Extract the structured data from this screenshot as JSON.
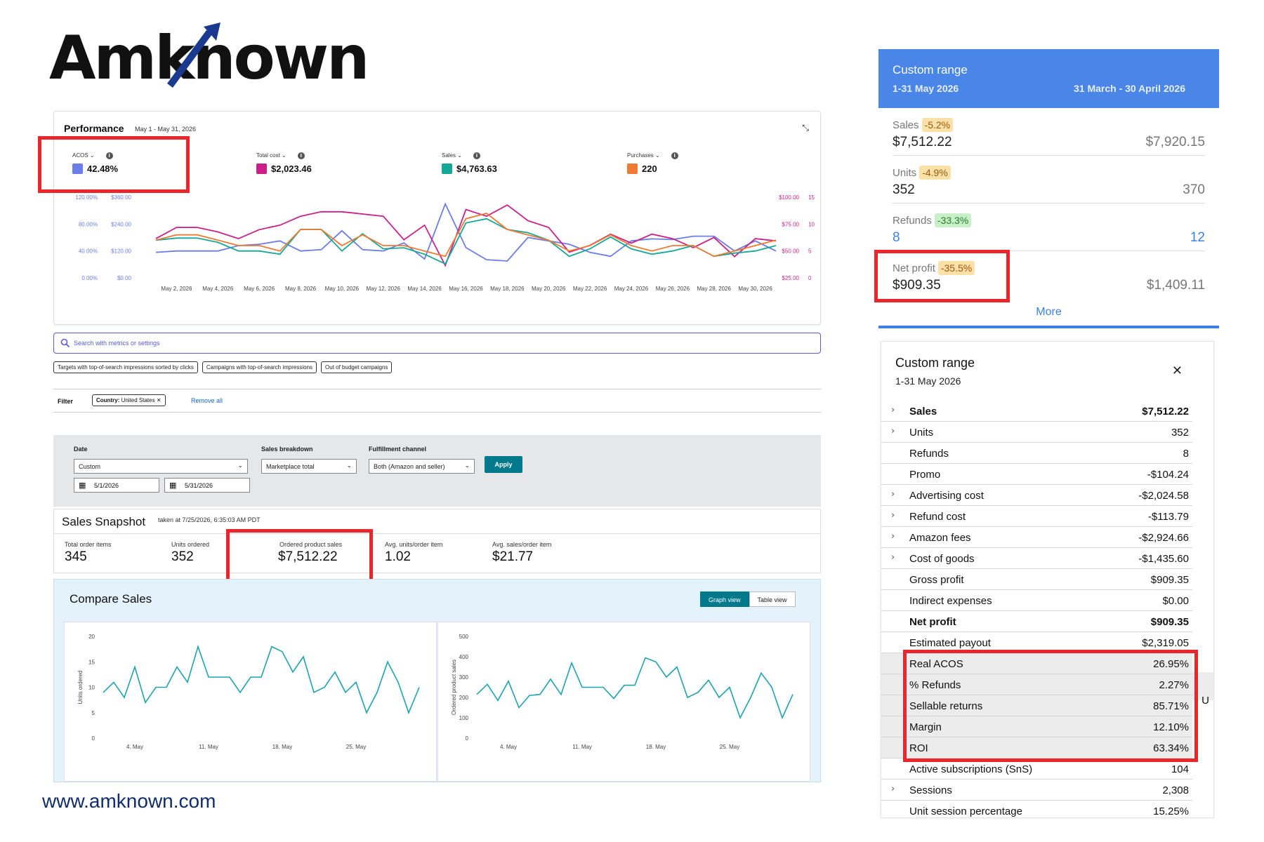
{
  "brand": {
    "logo": "Amknown",
    "website": "www.amknown.com"
  },
  "performance": {
    "title": "Performance",
    "range": "May 1 - May 31, 2026",
    "metrics": [
      {
        "label": "ACOS",
        "value": "42.48%",
        "color": "#6b7de8"
      },
      {
        "label": "Total cost",
        "value": "$2,023.46",
        "color": "#cc1f8a"
      },
      {
        "label": "Sales",
        "value": "$4,763.63",
        "color": "#14a896"
      },
      {
        "label": "Purchases",
        "value": "220",
        "color": "#f07a32"
      }
    ]
  },
  "chart_data": [
    {
      "type": "line",
      "title": "",
      "x": [
        "May 1",
        "May 2",
        "May 3",
        "May 4",
        "May 5",
        "May 6",
        "May 7",
        "May 8",
        "May 9",
        "May 10",
        "May 11",
        "May 12",
        "May 13",
        "May 14",
        "May 15",
        "May 16",
        "May 17",
        "May 18",
        "May 19",
        "May 20",
        "May 21",
        "May 22",
        "May 23",
        "May 24",
        "May 25",
        "May 26",
        "May 27",
        "May 28",
        "May 29",
        "May 30",
        "May 31"
      ],
      "x_tick_labels": [
        "May 2, 2026",
        "May 4, 2026",
        "May 6, 2026",
        "May 8, 2026",
        "May 10, 2026",
        "May 12, 2026",
        "May 14, 2026",
        "May 16, 2026",
        "May 18, 2026",
        "May 20, 2026",
        "May 22, 2026",
        "May 24, 2026",
        "May 26, 2026",
        "May 28, 2026",
        "May 30, 2026"
      ],
      "left_axis_pct_ticks": [
        "120.00%",
        "80.00%",
        "40.00%",
        "0.00%"
      ],
      "left_axis_usd_ticks": [
        "$360.00",
        "$240.00",
        "$120.00",
        "$0.00"
      ],
      "right_axis_usd_ticks": [
        "$100.00",
        "$75.00",
        "$50.00",
        "$25.00"
      ],
      "right_axis_count_ticks": [
        "15",
        "10",
        "5",
        "0"
      ],
      "grid": false,
      "series": [
        {
          "name": "ACOS",
          "axis": "pct",
          "ylim": [
            0,
            120
          ],
          "values": [
            38,
            40,
            40,
            40,
            48,
            50,
            55,
            40,
            42,
            70,
            42,
            40,
            52,
            28,
            110,
            45,
            27,
            25,
            60,
            55,
            50,
            38,
            32,
            55,
            58,
            57,
            62,
            62,
            40,
            55,
            40
          ]
        },
        {
          "name": "Total cost",
          "axis": "usd_left",
          "ylim": [
            0,
            360
          ],
          "values": [
            175,
            225,
            225,
            205,
            175,
            215,
            235,
            275,
            295,
            295,
            285,
            275,
            170,
            235,
            55,
            305,
            275,
            325,
            255,
            225,
            115,
            145,
            195,
            155,
            195,
            175,
            135,
            180,
            95,
            175,
            165
          ]
        },
        {
          "name": "Sales",
          "axis": "usd_right",
          "ylim": [
            25,
            100
          ],
          "values": [
            60,
            62,
            62,
            58,
            50,
            50,
            47,
            70,
            70,
            50,
            66,
            52,
            53,
            47,
            38,
            76,
            80,
            70,
            67,
            60,
            45,
            52,
            63,
            52,
            47,
            50,
            55,
            45,
            48,
            50,
            55
          ]
        },
        {
          "name": "Purchases",
          "axis": "count",
          "ylim": [
            0,
            15
          ],
          "values": [
            7,
            8,
            8,
            7,
            6,
            6,
            5,
            9,
            9,
            6,
            8,
            6,
            6,
            5,
            4,
            11,
            12,
            9,
            8,
            7,
            5,
            6,
            8,
            6,
            5,
            6,
            6,
            4,
            5,
            6,
            7
          ]
        }
      ]
    },
    {
      "type": "line",
      "title": "",
      "ylabel": "Units ordered",
      "y_ticks": [
        "20",
        "15",
        "10",
        "5",
        "0"
      ],
      "x_tick_labels": [
        "4. May",
        "11. May",
        "18. May",
        "25. May"
      ],
      "ylim": [
        0,
        20
      ],
      "series": [
        {
          "name": "Units ordered",
          "values": [
            9,
            11,
            8,
            14,
            7,
            10,
            10,
            14,
            11,
            18,
            12,
            12,
            12,
            9,
            12,
            12,
            18,
            17,
            13,
            16,
            9,
            10,
            13,
            9,
            11,
            5,
            9,
            15,
            11,
            5,
            10
          ]
        }
      ]
    },
    {
      "type": "line",
      "title": "",
      "ylabel": "Ordered product sales",
      "y_ticks": [
        "500",
        "400",
        "300",
        "200",
        "100",
        "0"
      ],
      "x_tick_labels": [
        "4. May",
        "11. May",
        "18. May",
        "25. May"
      ],
      "ylim": [
        0,
        500
      ],
      "series": [
        {
          "name": "Ordered product sales",
          "values": [
            215,
            265,
            185,
            280,
            150,
            210,
            215,
            290,
            215,
            370,
            250,
            250,
            250,
            195,
            260,
            260,
            395,
            375,
            300,
            350,
            200,
            225,
            285,
            200,
            250,
            100,
            200,
            320,
            250,
            100,
            215
          ]
        }
      ]
    }
  ],
  "search": {
    "placeholder": "Search with metrics or settings"
  },
  "chips": [
    "Targets with top-of-search impressions sorted by clicks",
    "Campaigns with top-of-search impressions",
    "Out of budget campaigns"
  ],
  "filter": {
    "label": "Filter",
    "chip_key": "Country:",
    "chip_value": "United States",
    "remove_all": "Remove all"
  },
  "controls": {
    "date_label": "Date",
    "date_value": "Custom",
    "breakdown_label": "Sales breakdown",
    "breakdown_value": "Marketplace total",
    "fulfillment_label": "Fulfillment channel",
    "fulfillment_value": "Both (Amazon and seller)",
    "start": "5/1/2026",
    "end": "5/31/2026",
    "apply": "Apply"
  },
  "snapshot": {
    "title": "Sales Snapshot",
    "taken": "taken at 7/25/2026, 6:35:03 AM PDT",
    "items": [
      {
        "label": "Total order items",
        "value": "345"
      },
      {
        "label": "Units ordered",
        "value": "352"
      },
      {
        "label": "Ordered product sales",
        "value": "$7,512.22"
      },
      {
        "label": "Avg. units/order item",
        "value": "1.02"
      },
      {
        "label": "Avg. sales/order item",
        "value": "$21.77"
      }
    ]
  },
  "compare": {
    "title": "Compare Sales",
    "graph_view": "Graph view",
    "table_view": "Table view"
  },
  "right_top": {
    "title": "Custom range",
    "current_range": "1-31 May 2026",
    "previous_range": "31 March - 30 April 2026",
    "rows": [
      {
        "name": "Sales",
        "badge": "-5.2%",
        "badge_type": "orange",
        "current": "$7,512.22",
        "previous": "$7,920.15"
      },
      {
        "name": "Units",
        "badge": "-4.9%",
        "badge_type": "orange",
        "current": "352",
        "previous": "370"
      },
      {
        "name": "Refunds",
        "badge": "-33.3%",
        "badge_type": "green",
        "current": "8",
        "previous": "12"
      },
      {
        "name": "Net profit",
        "badge": "-35.5%",
        "badge_type": "orange",
        "current": "$909.35",
        "previous": "$1,409.11"
      }
    ],
    "more": "More"
  },
  "right_bottom": {
    "title": "Custom range",
    "subtitle": "1-31 May 2026",
    "rows": [
      {
        "label": "Sales",
        "value": "$7,512.22",
        "expand": true,
        "bold": true
      },
      {
        "label": "Units",
        "value": "352",
        "expand": true
      },
      {
        "label": "Refunds",
        "value": "8",
        "expand": false
      },
      {
        "label": "Promo",
        "value": "-$104.24",
        "expand": false
      },
      {
        "label": "Advertising cost",
        "value": "-$2,024.58",
        "expand": true
      },
      {
        "label": "Refund cost",
        "value": "-$113.79",
        "expand": true
      },
      {
        "label": "Amazon fees",
        "value": "-$2,924.66",
        "expand": true
      },
      {
        "label": "Cost of goods",
        "value": "-$1,435.60",
        "expand": true
      },
      {
        "label": "Gross profit",
        "value": "$909.35",
        "expand": false
      },
      {
        "label": "Indirect expenses",
        "value": "$0.00",
        "expand": false
      },
      {
        "label": "Net profit",
        "value": "$909.35",
        "expand": false,
        "bold": true
      },
      {
        "label": "Estimated payout",
        "value": "$2,319.05",
        "expand": false
      },
      {
        "label": "Real ACOS",
        "value": "26.95%",
        "expand": false,
        "shade": true
      },
      {
        "label": "% Refunds",
        "value": "2.27%",
        "expand": false,
        "shade": true
      },
      {
        "label": "Sellable returns",
        "value": "85.71%",
        "expand": false,
        "shade": true
      },
      {
        "label": "Margin",
        "value": "12.10%",
        "expand": false,
        "shade": true
      },
      {
        "label": "ROI",
        "value": "63.34%",
        "expand": false,
        "shade": true
      },
      {
        "label": "Active subscriptions (SnS)",
        "value": "104",
        "expand": false
      },
      {
        "label": "Sessions",
        "value": "2,308",
        "expand": true
      },
      {
        "label": "Unit session percentage",
        "value": "15.25%",
        "expand": false
      }
    ],
    "edge_text": "U"
  }
}
